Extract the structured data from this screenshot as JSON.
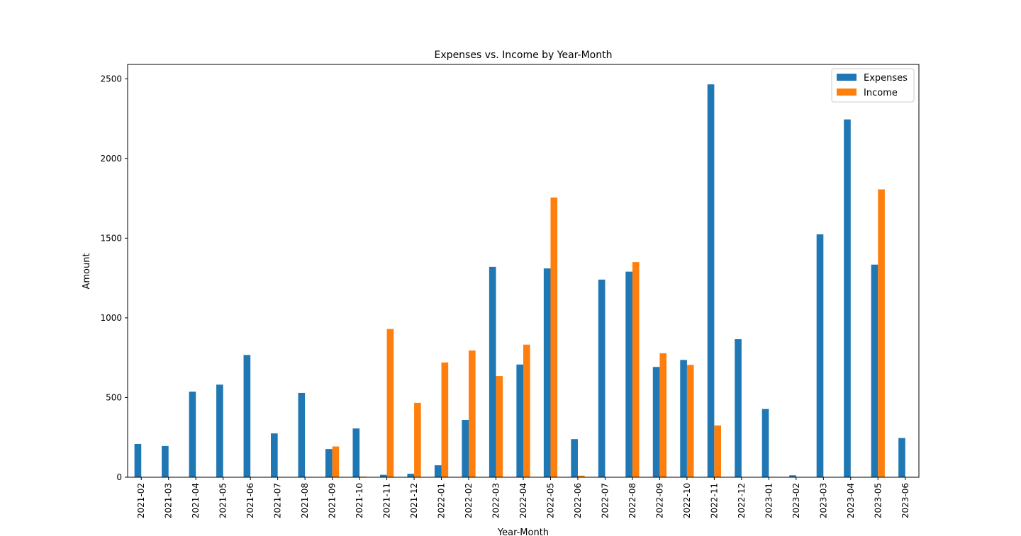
{
  "chart_data": {
    "type": "bar",
    "title": "Expenses vs. Income by Year-Month",
    "xlabel": "Year-Month",
    "ylabel": "Amount",
    "ylim": [
      0,
      2590
    ],
    "yticks": [
      0,
      500,
      1000,
      1500,
      2000,
      2500
    ],
    "grid": false,
    "legend_position": "top-right",
    "categories": [
      "2021-02",
      "2021-03",
      "2021-04",
      "2021-05",
      "2021-06",
      "2021-07",
      "2021-08",
      "2021-09",
      "2021-10",
      "2021-11",
      "2021-12",
      "2022-01",
      "2022-02",
      "2022-03",
      "2022-04",
      "2022-05",
      "2022-06",
      "2022-07",
      "2022-08",
      "2022-09",
      "2022-10",
      "2022-11",
      "2022-12",
      "2023-01",
      "2023-02",
      "2023-03",
      "2023-04",
      "2023-05",
      "2023-06"
    ],
    "series": [
      {
        "name": "Expenses",
        "color": "#1f77b4",
        "values": [
          209,
          196,
          537,
          581,
          767,
          275,
          529,
          177,
          306,
          15,
          22,
          75,
          360,
          1320,
          707,
          1310,
          239,
          1240,
          1290,
          692,
          736,
          2465,
          866,
          428,
          12,
          1524,
          2245,
          1334,
          246
        ]
      },
      {
        "name": "Income",
        "color": "#ff7f0e",
        "values": [
          0,
          0,
          0,
          0,
          0,
          0,
          0,
          193,
          4,
          930,
          467,
          720,
          795,
          635,
          832,
          1755,
          10,
          0,
          1350,
          778,
          705,
          325,
          0,
          0,
          0,
          0,
          0,
          1806,
          0
        ]
      }
    ]
  }
}
